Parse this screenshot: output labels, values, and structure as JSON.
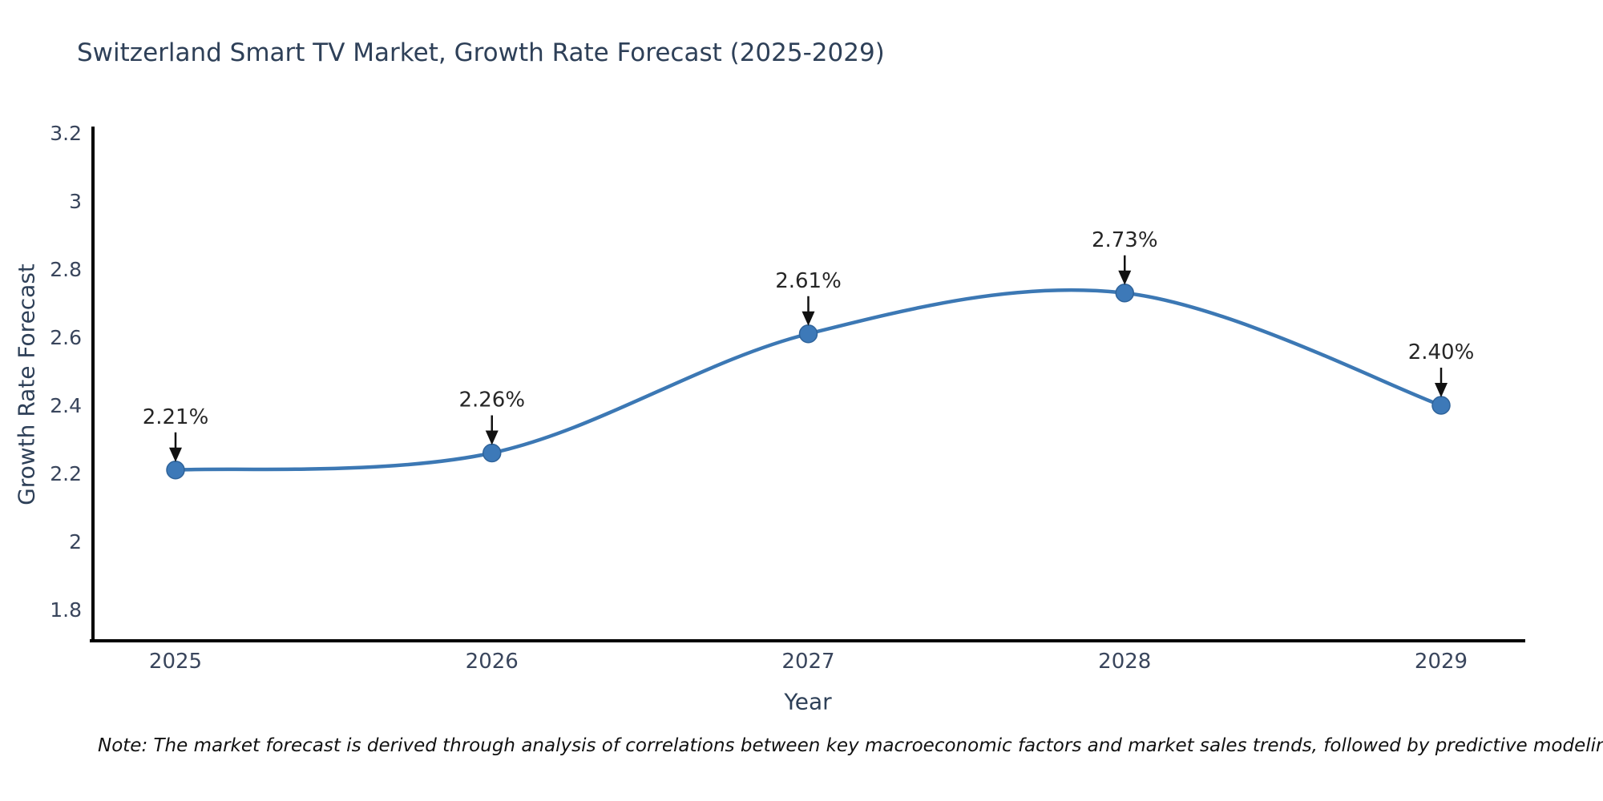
{
  "title": "Switzerland Smart TV Market, Growth Rate Forecast (2025-2029)",
  "footnote": "Note: The market forecast is derived through analysis of correlations between key macroeconomic factors and market sales trends, followed by predictive modeling to project future sales.",
  "colors": {
    "line": "#3c78b4",
    "marker": "#3d79b8",
    "marker_edge": "#2f639a",
    "axis": "#000000",
    "title_text": "#2e4058",
    "tick_text": "#39455c",
    "annotation_text": "#262626",
    "arrow": "#111111",
    "background": "#ffffff"
  },
  "chart_data": {
    "type": "line",
    "title": "Switzerland Smart TV Market, Growth Rate Forecast (2025-2029)",
    "xlabel": "Year",
    "ylabel": "Growth Rate Forecast",
    "categories": [
      "2025",
      "2026",
      "2027",
      "2028",
      "2029"
    ],
    "series": [
      {
        "name": "Growth Rate Forecast",
        "values": [
          2.21,
          2.26,
          2.61,
          2.73,
          2.4
        ]
      }
    ],
    "point_labels": [
      "2.21%",
      "2.26%",
      "2.61%",
      "2.73%",
      "2.40%"
    ],
    "ytick_labels": [
      "3.2",
      "3",
      "2.8",
      "2.6",
      "2.4",
      "2.2",
      "2",
      "1.8"
    ],
    "ytick_values": [
      3.2,
      3.0,
      2.8,
      2.6,
      2.4,
      2.2,
      2.0,
      1.8
    ],
    "ylim": [
      1.71,
      3.22
    ],
    "line_shape": "spline",
    "grid": false,
    "legend_position": "none",
    "annotations_note": "each point labeled with percent value and downward arrow"
  }
}
